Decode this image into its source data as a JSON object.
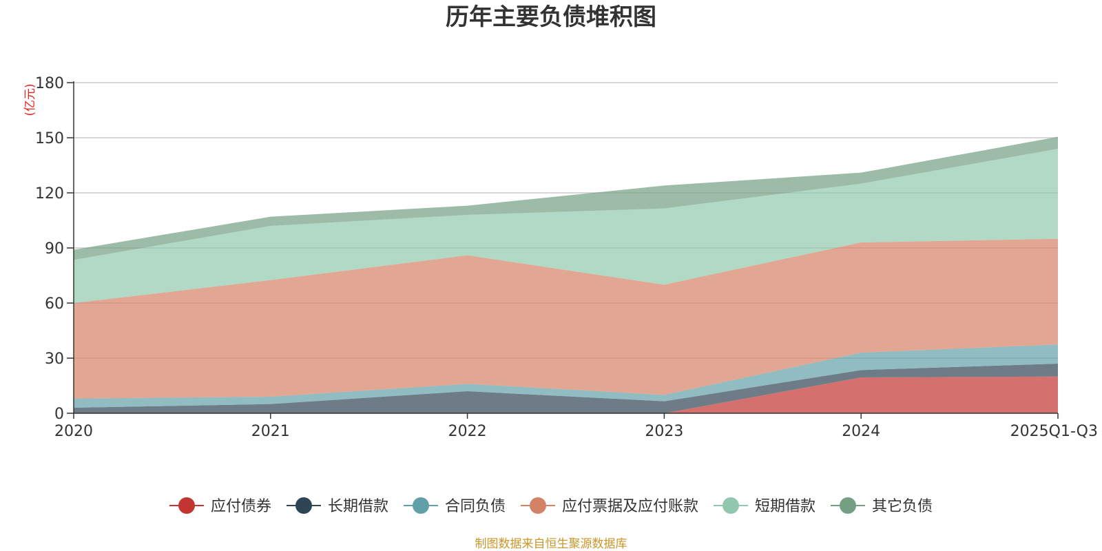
{
  "chart_data": {
    "type": "area",
    "stacked": true,
    "title": "历年主要负债堆积图",
    "ylabel": "(亿元)",
    "ylim": [
      0,
      180
    ],
    "yticks": [
      0,
      30,
      60,
      90,
      120,
      150,
      180
    ],
    "categories": [
      "2020",
      "2021",
      "2022",
      "2023",
      "2024",
      "2025Q1-Q3"
    ],
    "series": [
      {
        "name": "应付债券",
        "color": "#c23531",
        "values": [
          0,
          0,
          0,
          0,
          19.5,
          20
        ]
      },
      {
        "name": "长期借款",
        "color": "#2f4554",
        "values": [
          3,
          5,
          12,
          6.5,
          4,
          7
        ]
      },
      {
        "name": "合同负债",
        "color": "#61a0a8",
        "values": [
          5,
          4,
          4,
          3.5,
          9.5,
          10.5
        ]
      },
      {
        "name": "应付票据及应付账款",
        "color": "#d48265",
        "values": [
          52,
          63.5,
          70,
          60,
          60,
          57.5
        ]
      },
      {
        "name": "短期借款",
        "color": "#91c7ae",
        "values": [
          23.5,
          29.5,
          22,
          41.5,
          32,
          49
        ]
      },
      {
        "name": "其它负债",
        "color": "#749f83",
        "values": [
          5.5,
          5,
          5,
          12.5,
          6,
          6.5
        ]
      }
    ],
    "legend_position": "bottom",
    "source": "制图数据来自恒生聚源数据库"
  }
}
